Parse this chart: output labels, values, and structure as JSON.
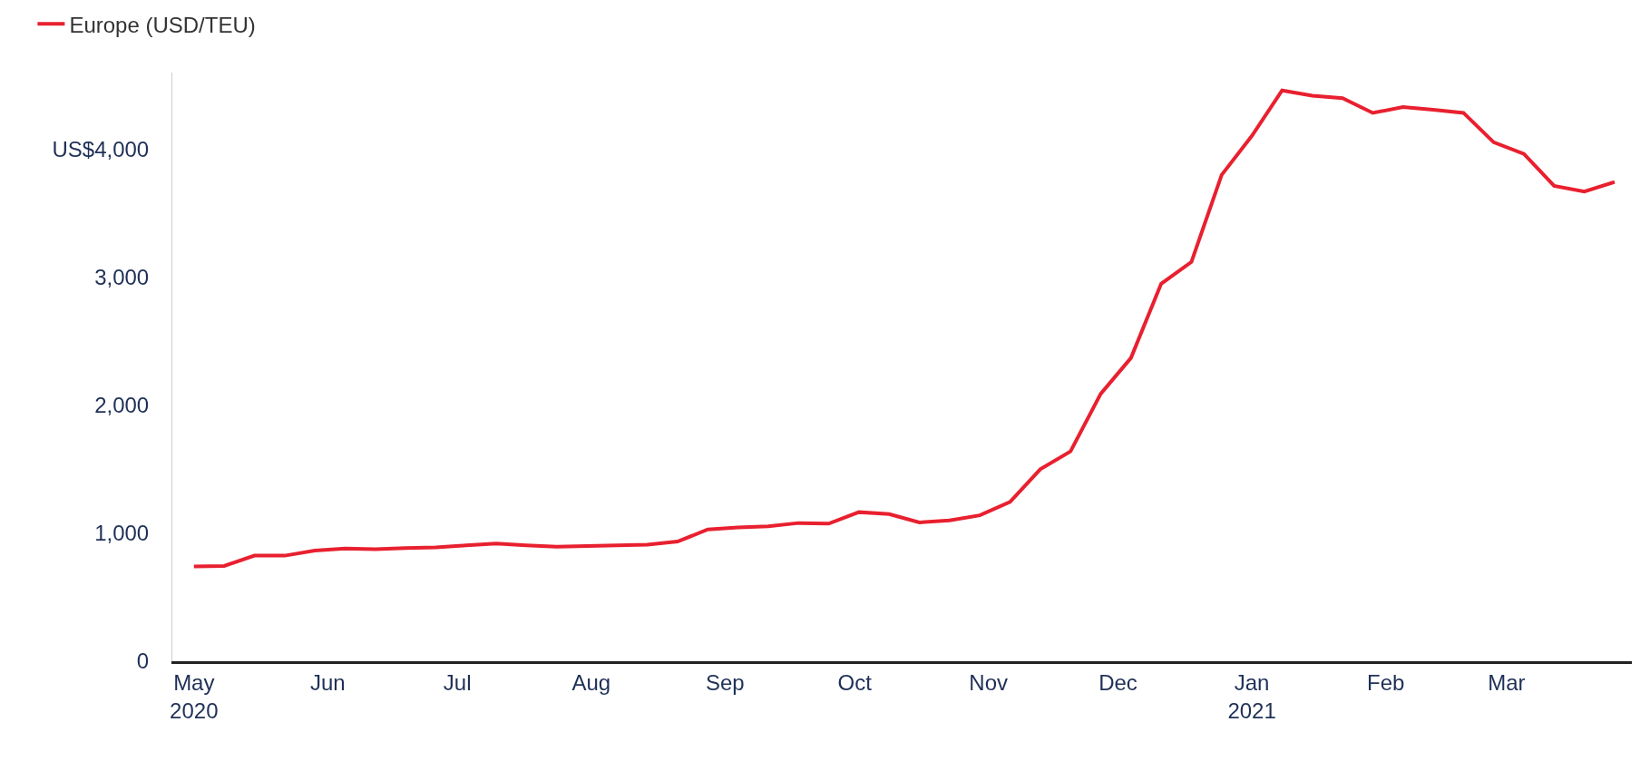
{
  "chart_data": {
    "type": "line",
    "x": [
      "2020-05-01",
      "2020-05-08",
      "2020-05-15",
      "2020-05-22",
      "2020-05-29",
      "2020-06-05",
      "2020-06-12",
      "2020-06-19",
      "2020-06-26",
      "2020-07-03",
      "2020-07-10",
      "2020-07-17",
      "2020-07-24",
      "2020-07-31",
      "2020-08-07",
      "2020-08-14",
      "2020-08-21",
      "2020-08-28",
      "2020-09-04",
      "2020-09-11",
      "2020-09-18",
      "2020-09-25",
      "2020-10-02",
      "2020-10-09",
      "2020-10-16",
      "2020-10-23",
      "2020-10-30",
      "2020-11-06",
      "2020-11-13",
      "2020-11-20",
      "2020-11-27",
      "2020-12-04",
      "2020-12-11",
      "2020-12-18",
      "2020-12-25",
      "2021-01-01",
      "2021-01-08",
      "2021-01-15",
      "2021-01-22",
      "2021-01-29",
      "2021-02-05",
      "2021-02-12",
      "2021-02-19",
      "2021-02-26",
      "2021-03-05",
      "2021-03-12",
      "2021-03-19",
      "2021-03-26"
    ],
    "series": [
      {
        "name": "Europe (USD/TEU)",
        "color": "#e8202f",
        "values": [
          740,
          745,
          825,
          825,
          865,
          880,
          875,
          885,
          890,
          905,
          920,
          905,
          895,
          900,
          905,
          910,
          935,
          1030,
          1045,
          1055,
          1080,
          1075,
          1165,
          1150,
          1085,
          1100,
          1140,
          1245,
          1500,
          1640,
          2090,
          2370,
          2950,
          3120,
          3800,
          4105,
          4460,
          4420,
          4400,
          4285,
          4330,
          4310,
          4285,
          4055,
          3965,
          3715,
          3670,
          3745
        ]
      }
    ],
    "xlim": [
      "2020-04-26",
      "2021-03-30"
    ],
    "xticks": [
      {
        "value": "2020-05-01",
        "label": "May\n2020"
      },
      {
        "value": "2020-06-01",
        "label": "Jun"
      },
      {
        "value": "2020-07-01",
        "label": "Jul"
      },
      {
        "value": "2020-08-01",
        "label": "Aug"
      },
      {
        "value": "2020-09-01",
        "label": "Sep"
      },
      {
        "value": "2020-10-01",
        "label": "Oct"
      },
      {
        "value": "2020-11-01",
        "label": "Nov"
      },
      {
        "value": "2020-12-01",
        "label": "Dec"
      },
      {
        "value": "2021-01-01",
        "label": "Jan\n2021"
      },
      {
        "value": "2021-02-01",
        "label": "Feb"
      },
      {
        "value": "2021-03-01",
        "label": "Mar"
      }
    ],
    "ylim": [
      0,
      4600
    ],
    "yticks": [
      0,
      {
        "value": 1000,
        "label": "1,000"
      },
      {
        "value": 2000,
        "label": "2,000"
      },
      {
        "value": 3000,
        "label": "3,000"
      },
      {
        "value": 4000,
        "label": "US$4,000"
      }
    ],
    "grid": false,
    "legend": "top left",
    "marker": "none",
    "line_style": "solid"
  }
}
